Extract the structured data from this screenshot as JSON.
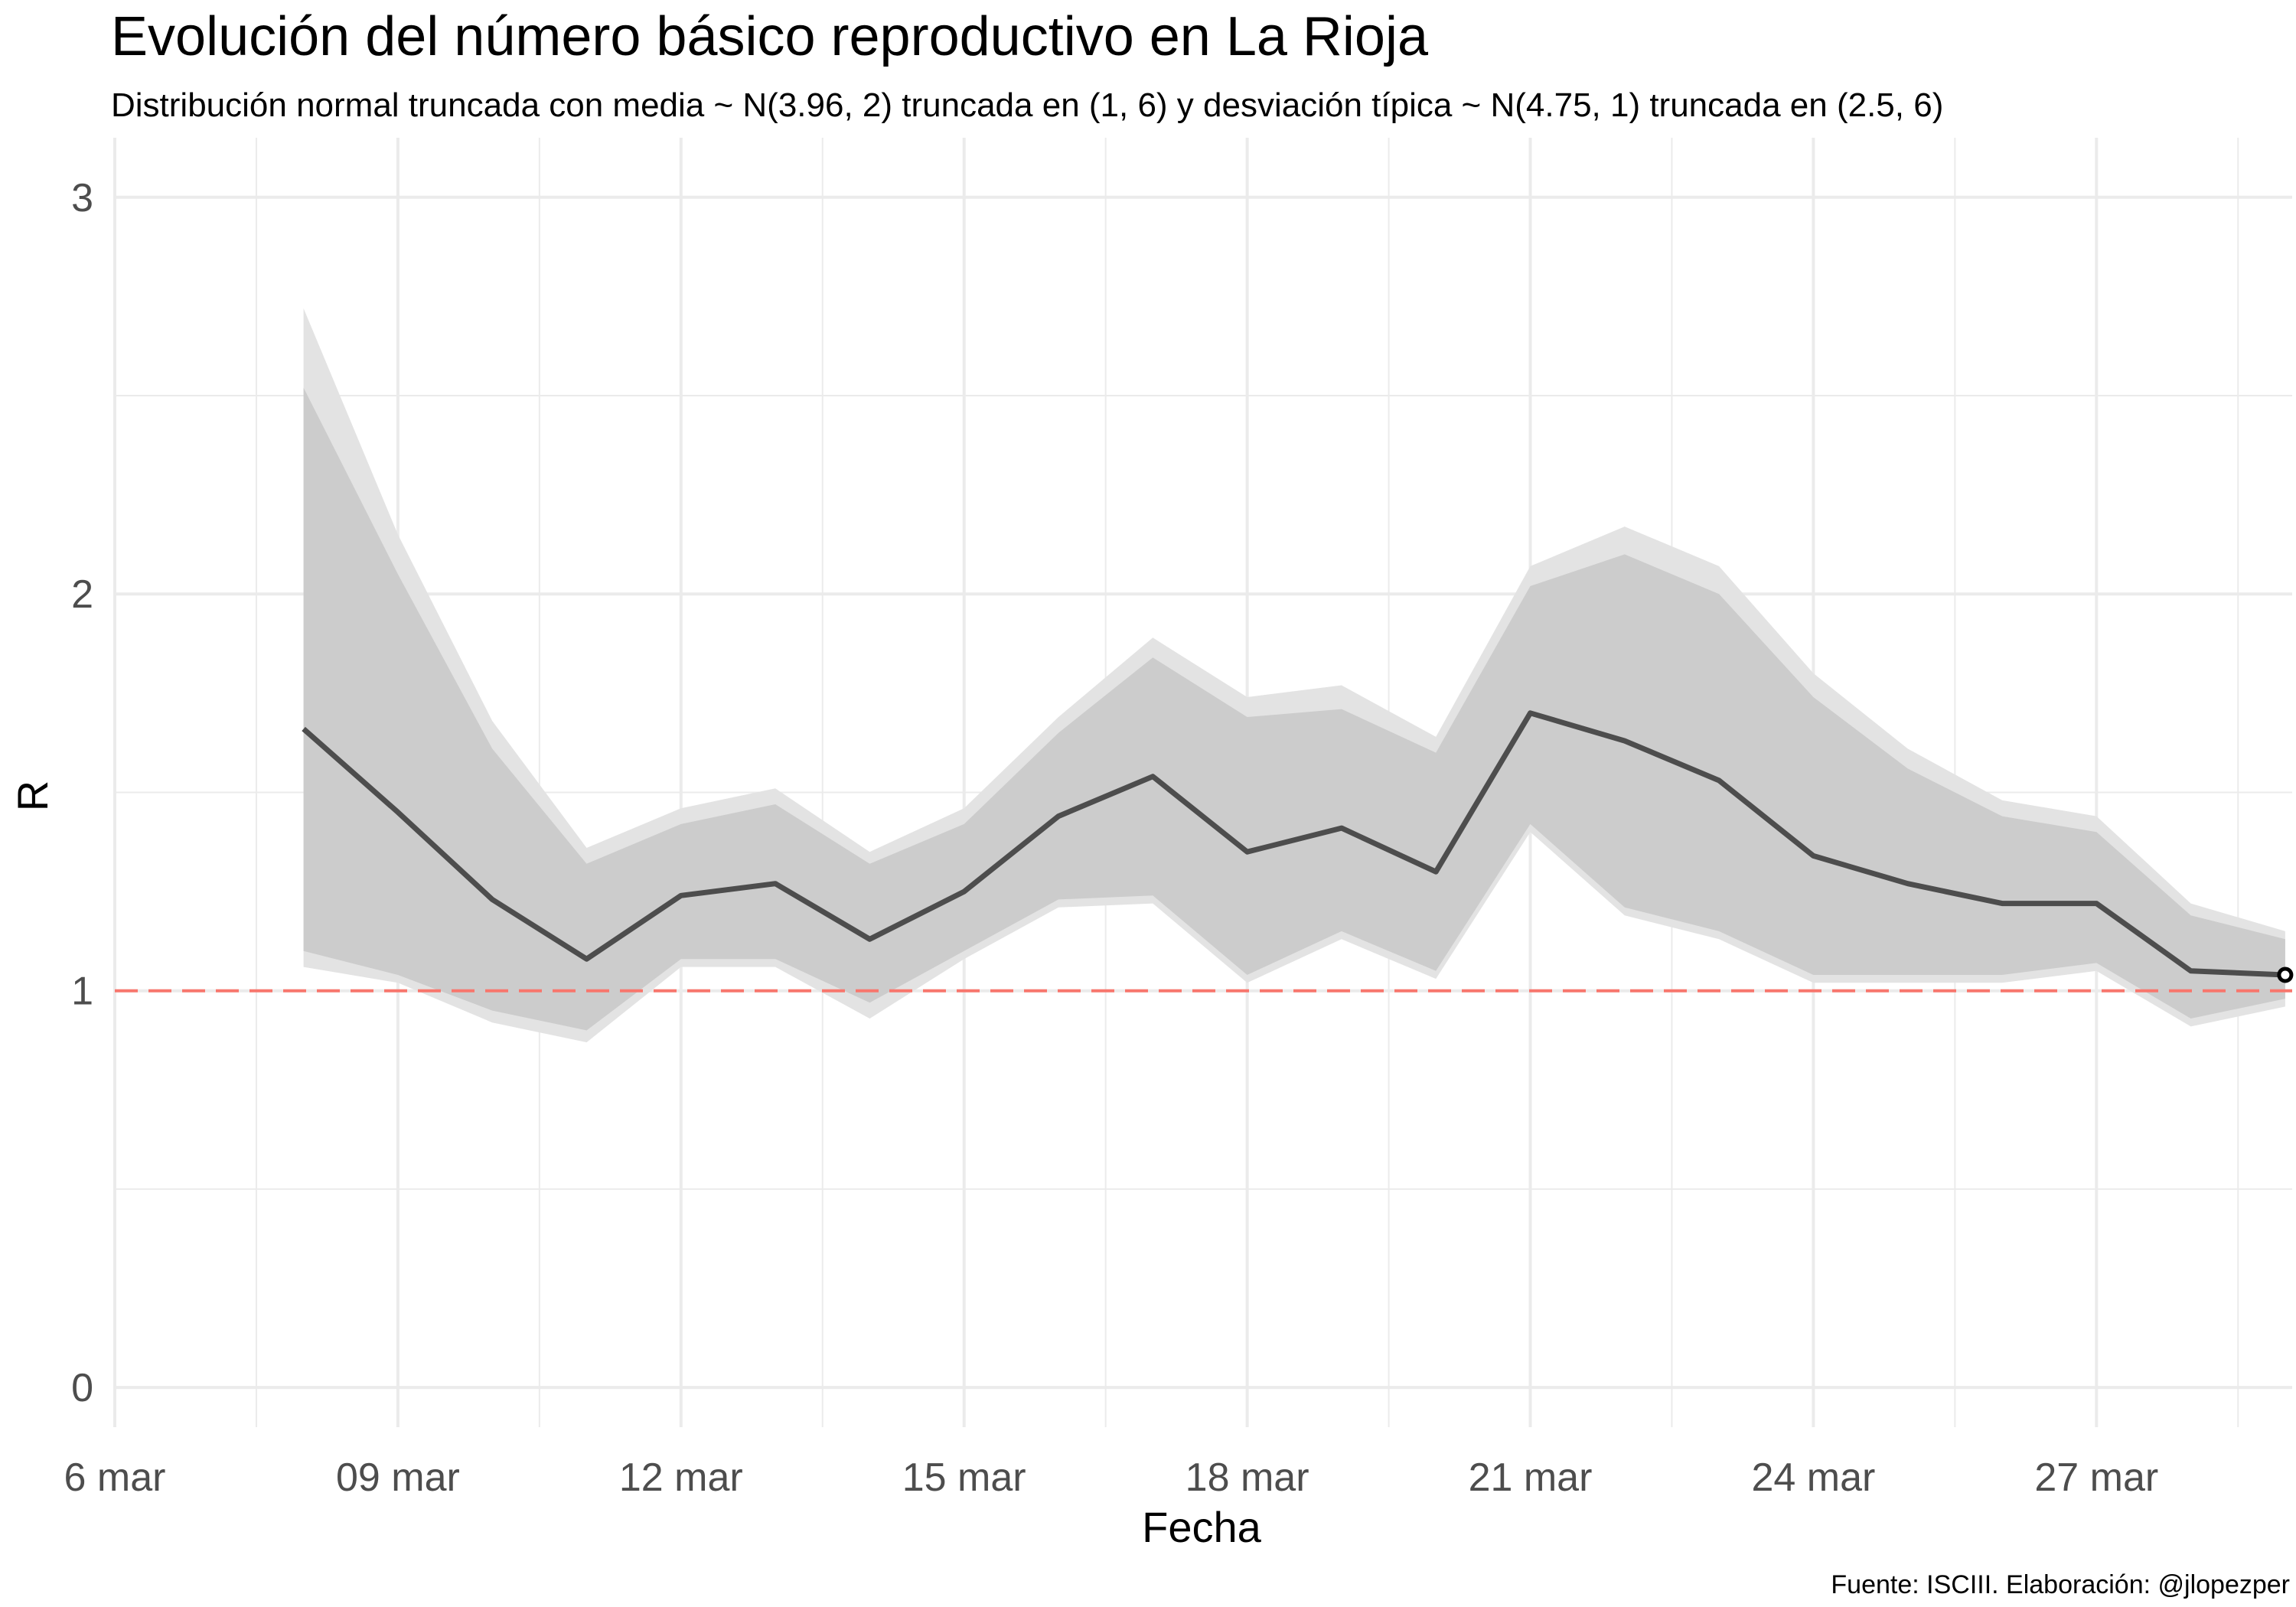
{
  "chart_data": {
    "type": "line",
    "title": "Evolución del número básico reproductivo en La Rioja",
    "subtitle": "Distribución normal truncada con media ~ N(3.96, 2) truncada en (1, 6) y desviación típica ~ N(4.75, 1) truncada en (2.5, 6)",
    "xlabel": "Fecha",
    "ylabel": "R",
    "caption": "Fuente: ISCIII. Elaboración: @jlopezper",
    "x_tick_labels": [
      "6 mar",
      "09 mar",
      "12 mar",
      "15 mar",
      "18 mar",
      "21 mar",
      "24 mar",
      "27 mar"
    ],
    "y_tick_labels": [
      "0",
      "1",
      "2",
      "3"
    ],
    "ylim": [
      -0.1,
      3.15
    ],
    "grid": true,
    "reference_line": {
      "y": 1,
      "style": "dashed",
      "color": "#f8766d"
    },
    "colors": {
      "line": "#4d4d4d",
      "inner_band": "#cccccc",
      "outer_band": "#e3e3e3",
      "grid": "#ebebeb"
    },
    "x": [
      "08 mar",
      "09 mar",
      "10 mar",
      "11 mar",
      "12 mar",
      "13 mar",
      "14 mar",
      "15 mar",
      "16 mar",
      "17 mar",
      "18 mar",
      "19 mar",
      "20 mar",
      "21 mar",
      "22 mar",
      "23 mar",
      "24 mar",
      "25 mar",
      "26 mar",
      "27 mar",
      "28 mar",
      "29 mar"
    ],
    "series": [
      {
        "values": [
          1.66,
          1.45,
          1.23,
          1.08,
          1.24,
          1.27,
          1.13,
          1.25,
          1.44,
          1.54,
          1.35,
          1.41,
          1.3,
          1.7,
          1.63,
          1.53,
          1.34,
          1.27,
          1.22,
          1.22,
          1.05,
          1.04
        ]
      }
    ],
    "band_inner_upper": [
      2.52,
      2.05,
      1.61,
      1.32,
      1.42,
      1.47,
      1.32,
      1.42,
      1.65,
      1.84,
      1.69,
      1.71,
      1.6,
      2.02,
      2.1,
      2.0,
      1.74,
      1.56,
      1.44,
      1.4,
      1.19,
      1.13
    ],
    "band_inner_lower": [
      1.1,
      1.04,
      0.95,
      0.9,
      1.08,
      1.08,
      0.97,
      1.1,
      1.23,
      1.24,
      1.04,
      1.15,
      1.05,
      1.42,
      1.21,
      1.15,
      1.04,
      1.04,
      1.04,
      1.07,
      0.93,
      0.98
    ],
    "band_outer_upper": [
      2.72,
      2.15,
      1.68,
      1.36,
      1.46,
      1.51,
      1.35,
      1.46,
      1.69,
      1.89,
      1.74,
      1.77,
      1.64,
      2.07,
      2.17,
      2.07,
      1.8,
      1.61,
      1.48,
      1.44,
      1.22,
      1.15
    ],
    "band_outer_lower": [
      1.06,
      1.02,
      0.92,
      0.87,
      1.06,
      1.06,
      0.93,
      1.08,
      1.21,
      1.22,
      1.02,
      1.13,
      1.03,
      1.4,
      1.19,
      1.13,
      1.02,
      1.02,
      1.02,
      1.05,
      0.91,
      0.96
    ]
  }
}
